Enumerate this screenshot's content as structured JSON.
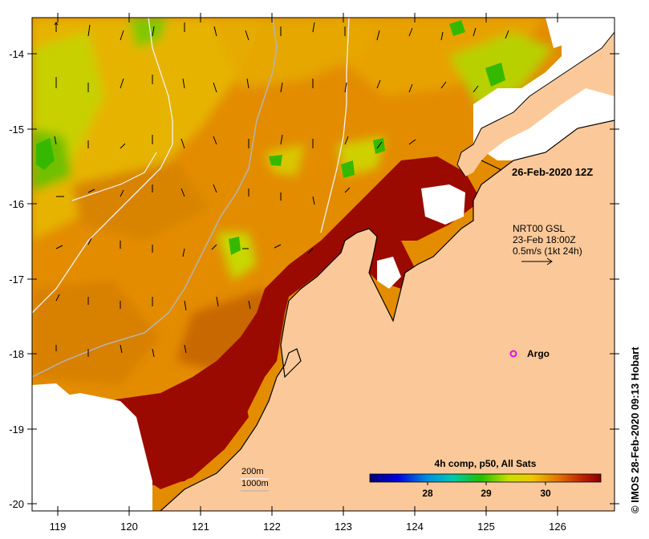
{
  "axes": {
    "lat_labels": [
      "-14",
      "-15",
      "-16",
      "-17",
      "-18",
      "-19",
      "-20"
    ],
    "lon_labels": [
      "119",
      "120",
      "121",
      "122",
      "123",
      "124",
      "125",
      "126"
    ]
  },
  "annotations": {
    "timestamp": "26-Feb-2020 12Z",
    "current_source": "NRT00 GSL",
    "current_time": "23-Feb 18:00Z",
    "current_scale": "0.5m/s (1kt 24h)",
    "argo_label": "Argo"
  },
  "depth_legend": {
    "contour_1": "200m",
    "contour_2": "1000m"
  },
  "colorbar": {
    "title": "4h comp, p50, All Sats",
    "ticks": [
      "28",
      "29",
      "30"
    ]
  },
  "credit": "IMOS 28-Feb-2020 09:13 Hobart",
  "copyright_symbol": "©",
  "colors": {
    "land": "#fbc999",
    "warm": "#9b0a00",
    "orange": "#e18a00",
    "yellow": "#e6c800",
    "green": "#4ec000",
    "argo": "#e010e0"
  }
}
